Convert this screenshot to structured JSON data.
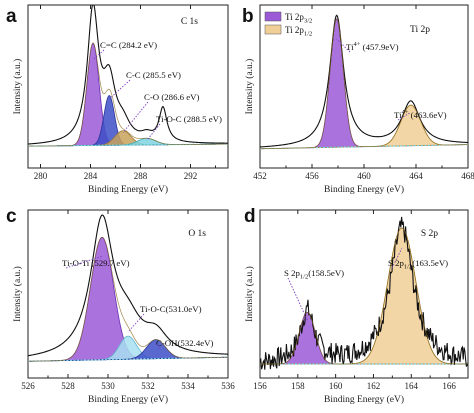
{
  "chart_data": [
    {
      "type": "area",
      "panel_letter": "a",
      "region": "C 1s",
      "xlabel": "Binding Energy (eV)",
      "ylabel": "Intensity (a.u.)",
      "xlim": [
        279,
        295
      ],
      "reverse_x": false,
      "xticks": [
        280,
        284,
        288,
        292
      ],
      "envelope": {
        "base": 0.06,
        "slope": 0.001,
        "peaks": [
          [
            284.2,
            1.0,
            0.55
          ],
          [
            285.5,
            0.42,
            0.6
          ],
          [
            286.6,
            0.12,
            0.7
          ],
          [
            288.5,
            0.05,
            0.6
          ],
          [
            289.8,
            0.26,
            0.38
          ]
        ]
      },
      "components": [
        {
          "name": "C=C (284.2 eV)",
          "center": 284.2,
          "height": 0.78,
          "fwhm": 1.15,
          "fill": "#9b59d6",
          "stroke": "#6a2fb5"
        },
        {
          "name": "C-C (285.5 eV)",
          "center": 285.5,
          "height": 0.38,
          "fwhm": 1.0,
          "fill": "#3d4fc8",
          "stroke": "#2a3596"
        },
        {
          "name": "C-O (286.6 eV)",
          "center": 286.6,
          "height": 0.11,
          "fwhm": 1.5,
          "fill": "#c9a25a",
          "stroke": "#a07a30"
        },
        {
          "name": "Ti-O-C (288.5 eV)",
          "center": 288.5,
          "height": 0.05,
          "fwhm": 1.7,
          "fill": "#7fd3e0",
          "stroke": "#40aabb"
        }
      ],
      "annotations": [
        {
          "text": "C=C (284.2 eV)",
          "peak_x": 284.2
        },
        {
          "text": "C-C (285.5 eV)",
          "peak_x": 285.5
        },
        {
          "text": "C-O (286.6 eV)",
          "peak_x": 286.6
        },
        {
          "text": "Ti-O-C (288.5 eV)",
          "peak_x": 288.5
        }
      ]
    },
    {
      "type": "area",
      "panel_letter": "b",
      "region": "Ti 2p",
      "xlabel": "Binding Energy (eV)",
      "ylabel": "Intensity (a.u.)",
      "xlim": [
        452,
        468
      ],
      "reverse_x": false,
      "xticks": [
        452,
        456,
        460,
        464,
        468
      ],
      "envelope": {
        "base": 0.04,
        "slope": 0.002,
        "peaks": [
          [
            457.9,
            1.0,
            0.65
          ],
          [
            463.6,
            0.33,
            0.85
          ]
        ]
      },
      "components": [
        {
          "name": "Ti 2p 3/2",
          "center": 457.9,
          "height": 0.98,
          "fwhm": 1.2,
          "fill": "#9b59d6",
          "stroke": "#6a2fb5"
        },
        {
          "name": "Ti 2p 1/2",
          "center": 463.6,
          "height": 0.31,
          "fwhm": 1.8,
          "fill": "#f0cf96",
          "stroke": "#b48a3a"
        }
      ],
      "legend": [
        {
          "main": "Ti 2p",
          "sub": "3/2",
          "color": "#9b59d6"
        },
        {
          "main": "Ti 2p",
          "sub": "1/2",
          "color": "#f0cf96"
        }
      ],
      "annotations": [
        {
          "main": "Ti",
          "sup": "4+",
          "rest": " (457.9eV)",
          "peak_x": 457.9
        },
        {
          "main": "Ti",
          "sup": "4+",
          "rest": " (463.6eV)",
          "peak_x": 463.6
        }
      ]
    },
    {
      "type": "area",
      "panel_letter": "c",
      "region": "O 1s",
      "xlabel": "Binding Energy (eV)",
      "ylabel": "Intensity (a.u.)",
      "xlim": [
        526,
        536
      ],
      "reverse_x": false,
      "xticks": [
        526,
        528,
        530,
        532,
        534,
        536
      ],
      "envelope": {
        "base": 0.02,
        "slope": 0.003,
        "peaks": [
          [
            529.7,
            1.0,
            0.7
          ],
          [
            531.0,
            0.2,
            0.8
          ],
          [
            532.4,
            0.14,
            0.7
          ]
        ]
      },
      "components": [
        {
          "name": "Ti-O-Ti (529.7 eV)",
          "center": 529.7,
          "height": 0.9,
          "fwhm": 1.35,
          "fill": "#9b59d6",
          "stroke": "#6a2fb5"
        },
        {
          "name": "Ti-O-C(531.0eV)",
          "center": 531.0,
          "height": 0.17,
          "fwhm": 1.0,
          "fill": "#a8dff0",
          "stroke": "#60b8d0"
        },
        {
          "name": "C-OH(532.4eV)",
          "center": 532.4,
          "height": 0.14,
          "fwhm": 1.1,
          "fill": "#3d4fc8",
          "stroke": "#2a3596"
        }
      ],
      "annotations": [
        {
          "text": "Ti-O-Ti (529.7 eV)",
          "peak_x": 529.7
        },
        {
          "text": "Ti-O-C(531.0eV)",
          "peak_x": 531.0
        },
        {
          "text": "C-OH(532.4eV)",
          "peak_x": 532.4
        }
      ]
    },
    {
      "type": "area",
      "panel_letter": "d",
      "region": "S 2p",
      "xlabel": "Binding Energy (eV)",
      "ylabel": "Intensity (a.u.)",
      "xlim": [
        156,
        167
      ],
      "reverse_x": false,
      "xticks": [
        156,
        158,
        160,
        162,
        164,
        166
      ],
      "noisy": true,
      "envelope": {
        "base": 0.0,
        "slope": 0.0,
        "peaks": [
          [
            158.5,
            0.38,
            0.45
          ],
          [
            163.5,
            1.0,
            0.75
          ]
        ]
      },
      "components": [
        {
          "name": "S 2p1/2 (158.5eV)",
          "center": 158.5,
          "height": 0.38,
          "fwhm": 1.0,
          "fill": "#9b59d6",
          "stroke": "#6a2fb5"
        },
        {
          "name": "S 2p1/2 (163.5eV)",
          "center": 163.5,
          "height": 1.0,
          "fwhm": 1.75,
          "fill": "#f0cf96",
          "stroke": "#b48a3a"
        }
      ],
      "annotations": [
        {
          "main": "S 2p",
          "sub": "1/2",
          "rest": "(158.5eV)",
          "peak_x": 158.5
        },
        {
          "main": "S 2p",
          "sub": "1/2",
          "rest": "(163.5eV)",
          "peak_x": 163.5
        }
      ]
    }
  ]
}
